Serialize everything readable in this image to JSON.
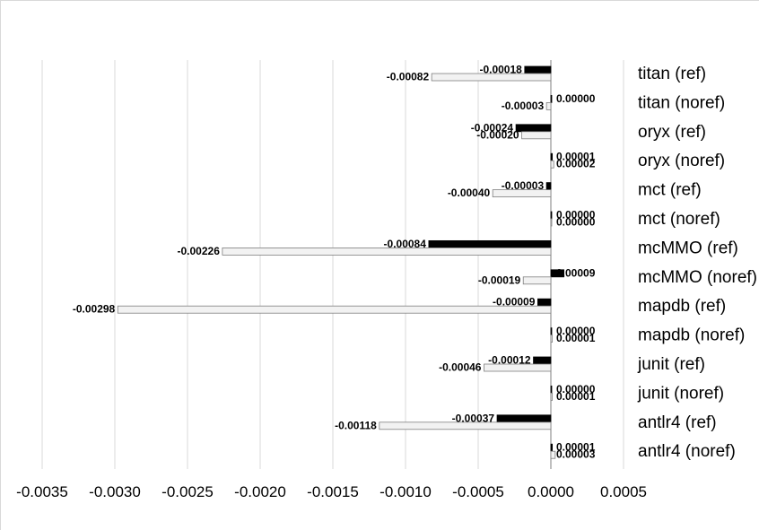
{
  "chart_data": {
    "type": "bar",
    "orientation": "horizontal",
    "categories": [
      "titan (ref)",
      "titan (noref)",
      "oryx (ref)",
      "oryx (noref)",
      "mct (ref)",
      "mct (noref)",
      "mcMMO (ref)",
      "mcMMO (noref)",
      "mapdb (ref)",
      "mapdb (noref)",
      "junit (ref)",
      "junit (noref)",
      "antlr4 (ref)",
      "antlr4 (noref)"
    ],
    "series": [
      {
        "color": "#000000",
        "values": [
          -0.00018,
          0.0,
          -0.00024,
          1e-05,
          -3e-05,
          0.0,
          -0.00084,
          9e-05,
          -9e-05,
          0.0,
          -0.00012,
          0.0,
          -0.00037,
          1e-05
        ],
        "labels": [
          "-0.00018",
          "0.00000",
          "-0.00024",
          "0.00001",
          "-0.00003",
          "0.00000",
          "-0.00084",
          "0.00009",
          "-0.00009",
          "0.00000",
          "-0.00012",
          "0.00000",
          "-0.00037",
          "0.00001"
        ]
      },
      {
        "color": "#f2f2f2",
        "values": [
          -0.00082,
          -3e-05,
          -0.0002,
          2e-05,
          -0.0004,
          0.0,
          -0.00226,
          -0.00019,
          -0.00298,
          1e-05,
          -0.00046,
          1e-05,
          -0.00118,
          3e-05
        ],
        "labels": [
          "-0.00082",
          "-0.00003",
          "-0.00020",
          "0.00002",
          "-0.00040",
          "0.00000",
          "-0.00226",
          "-0.00019",
          "-0.00298",
          "0.00001",
          "-0.00046",
          "0.00001",
          "-0.00118",
          "0.00003"
        ]
      }
    ],
    "xlim": [
      -0.0035,
      0.0005
    ],
    "xticks": [
      -0.0035,
      -0.003,
      -0.0025,
      -0.002,
      -0.0015,
      -0.001,
      -0.0005,
      0.0,
      0.0005
    ],
    "xtick_labels": [
      "-0.0035",
      "-0.0030",
      "-0.0025",
      "-0.0020",
      "-0.0015",
      "-0.0010",
      "-0.0005",
      "0.0000",
      "0.0005"
    ],
    "grid": true,
    "legend": "none"
  }
}
